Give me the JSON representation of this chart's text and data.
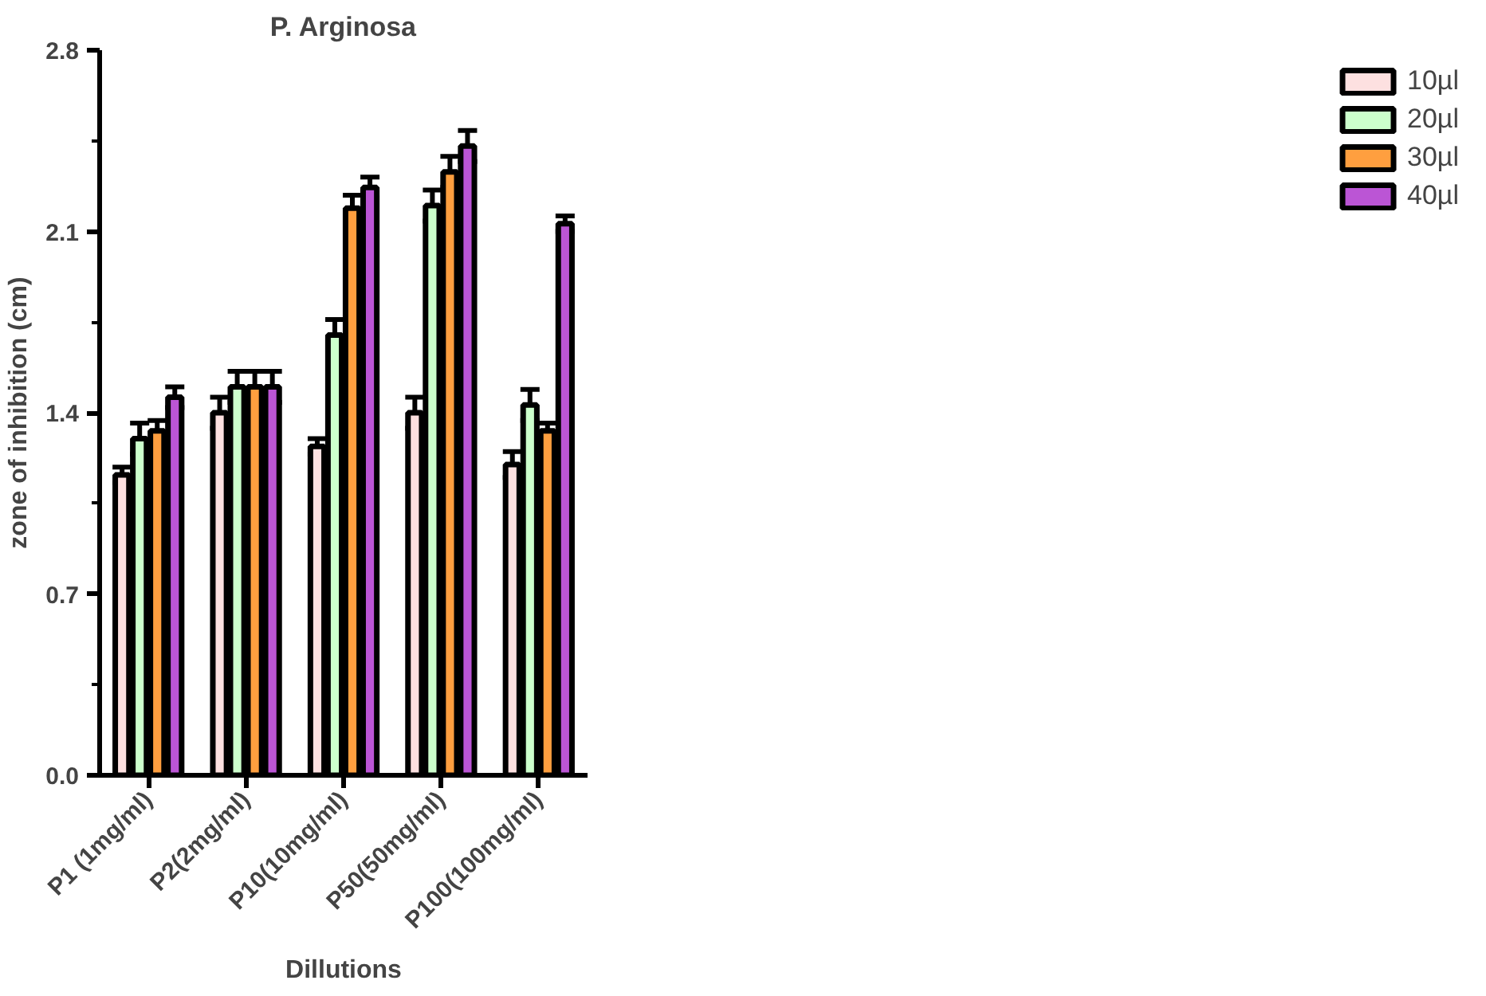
{
  "chart_data": {
    "type": "bar",
    "title": "P. Arginosa",
    "xlabel": "Dillutions",
    "ylabel": "zone of inhibition (cm)",
    "categories": [
      "P1 (1mg/ml)",
      "P2(2mg/ml)",
      "P10(10mg/ml)",
      "P50(50mg/ml)",
      "P100(100mg/ml)"
    ],
    "series": [
      {
        "name": "10µl",
        "color": "#fde0e0",
        "values": [
          1.16,
          1.4,
          1.27,
          1.4,
          1.2
        ],
        "errors": [
          0.03,
          0.06,
          0.03,
          0.06,
          0.05
        ]
      },
      {
        "name": "20µl",
        "color": "#ccffcc",
        "values": [
          1.3,
          1.5,
          1.7,
          2.2,
          1.43
        ],
        "errors": [
          0.06,
          0.06,
          0.06,
          0.06,
          0.06
        ]
      },
      {
        "name": "30µl",
        "color": "#ff9f3f",
        "values": [
          1.33,
          1.5,
          2.19,
          2.33,
          1.33
        ],
        "errors": [
          0.04,
          0.06,
          0.05,
          0.06,
          0.03
        ]
      },
      {
        "name": "40µl",
        "color": "#bb55d5",
        "values": [
          1.46,
          1.5,
          2.27,
          2.43,
          2.13
        ],
        "errors": [
          0.04,
          0.06,
          0.04,
          0.06,
          0.03
        ]
      }
    ],
    "ylim": [
      0,
      2.8
    ],
    "yticks": [
      {
        "value": 0,
        "label": "0.0"
      },
      {
        "value": 0.7,
        "label": "0.7"
      },
      {
        "value": 1.4,
        "label": "1.4"
      },
      {
        "value": 2.1,
        "label": "2.1"
      },
      {
        "value": 2.8,
        "label": "2.8"
      }
    ],
    "grid": false,
    "legend": "top right"
  }
}
